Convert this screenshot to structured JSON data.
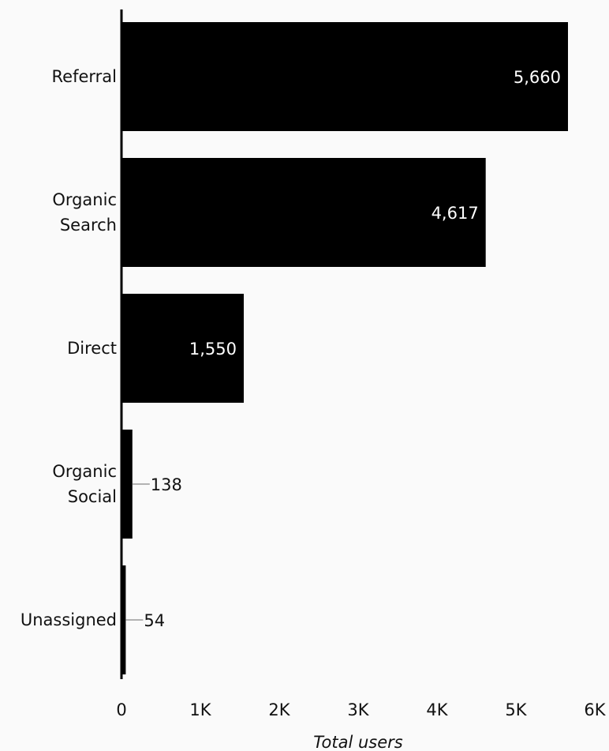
{
  "chart_data": {
    "type": "bar",
    "orientation": "horizontal",
    "categories": [
      "Referral",
      "Organic Search",
      "Direct",
      "Organic Social",
      "Unassigned"
    ],
    "category_lines": [
      [
        "Referral"
      ],
      [
        "Organic",
        "Search"
      ],
      [
        "Direct"
      ],
      [
        "Organic",
        "Social"
      ],
      [
        "Unassigned"
      ]
    ],
    "values": [
      5660,
      4617,
      1550,
      138,
      54
    ],
    "value_labels": [
      "5,660",
      "4,617",
      "1,550",
      "138",
      "54"
    ],
    "xlabel": "Total users",
    "ylabel": "",
    "xlim": [
      0,
      6000
    ],
    "x_ticks": [
      0,
      1000,
      2000,
      3000,
      4000,
      5000,
      6000
    ],
    "x_tick_labels": [
      "0",
      "1K",
      "2K",
      "3K",
      "4K",
      "5K",
      "6K"
    ],
    "grid": false,
    "colors": {
      "bar": "#000000",
      "label_inside": "#ffffff",
      "label_outside": "#111111",
      "leader_line": "#9a9a9a",
      "axis": "#000000",
      "background": "#fafafa"
    }
  }
}
